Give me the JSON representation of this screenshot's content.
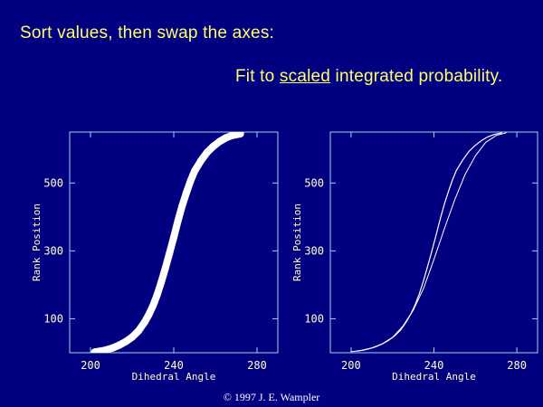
{
  "slide": {
    "heading": "Sort values, then swap the axes:",
    "subheading_before": "Fit to ",
    "subheading_emphasis": "scaled",
    "subheading_after": " integrated probability.",
    "copyright": "© 1997 J. E. Wampler"
  },
  "colors": {
    "background": "#000080",
    "heading_text": "#ffff66",
    "plot_frame": "#9ad7e6",
    "tick_text": "#ffffcc",
    "data": "#ffffff"
  },
  "chart_data": [
    {
      "type": "scatter",
      "title": "",
      "xlabel": "Dihedral Angle",
      "ylabel": "Rank Position",
      "xlim": [
        190,
        290
      ],
      "ylim": [
        0,
        650
      ],
      "x_ticks": [
        200,
        240,
        280
      ],
      "y_ticks": [
        100,
        300,
        500
      ],
      "grid": false,
      "series": [
        {
          "style": "thick-points",
          "x": [
            202,
            205,
            208,
            211,
            214,
            217,
            220,
            223,
            226,
            228,
            230,
            232,
            234,
            236,
            238,
            240,
            242,
            244,
            246,
            248,
            250,
            253,
            256,
            259,
            262,
            265,
            268,
            272
          ],
          "y": [
            2,
            5,
            9,
            15,
            23,
            33,
            46,
            64,
            90,
            112,
            138,
            170,
            208,
            250,
            294,
            340,
            388,
            432,
            470,
            505,
            535,
            565,
            590,
            608,
            622,
            633,
            640,
            645
          ]
        }
      ]
    },
    {
      "type": "line",
      "title": "",
      "xlabel": "Dihedral Angle",
      "ylabel": "Rank Position",
      "xlim": [
        190,
        290
      ],
      "ylim": [
        0,
        650
      ],
      "x_ticks": [
        200,
        240,
        280
      ],
      "y_ticks": [
        100,
        300,
        500
      ],
      "grid": false,
      "series": [
        {
          "style": "sorted-data",
          "x": [
            202,
            205,
            208,
            211,
            214,
            217,
            220,
            223,
            226,
            228,
            230,
            232,
            234,
            236,
            238,
            240,
            242,
            244,
            246,
            248,
            250,
            253,
            256,
            259,
            262,
            265,
            268,
            272
          ],
          "y": [
            2,
            5,
            9,
            15,
            23,
            33,
            46,
            64,
            90,
            112,
            138,
            170,
            208,
            250,
            294,
            340,
            388,
            432,
            470,
            505,
            535,
            565,
            590,
            608,
            622,
            633,
            640,
            645
          ]
        },
        {
          "style": "fit",
          "x": [
            200,
            205,
            210,
            215,
            220,
            225,
            230,
            235,
            240,
            245,
            250,
            255,
            260,
            265,
            270,
            275
          ],
          "y": [
            3,
            7,
            14,
            26,
            45,
            78,
            125,
            190,
            275,
            365,
            450,
            525,
            580,
            620,
            640,
            648
          ]
        }
      ]
    }
  ]
}
